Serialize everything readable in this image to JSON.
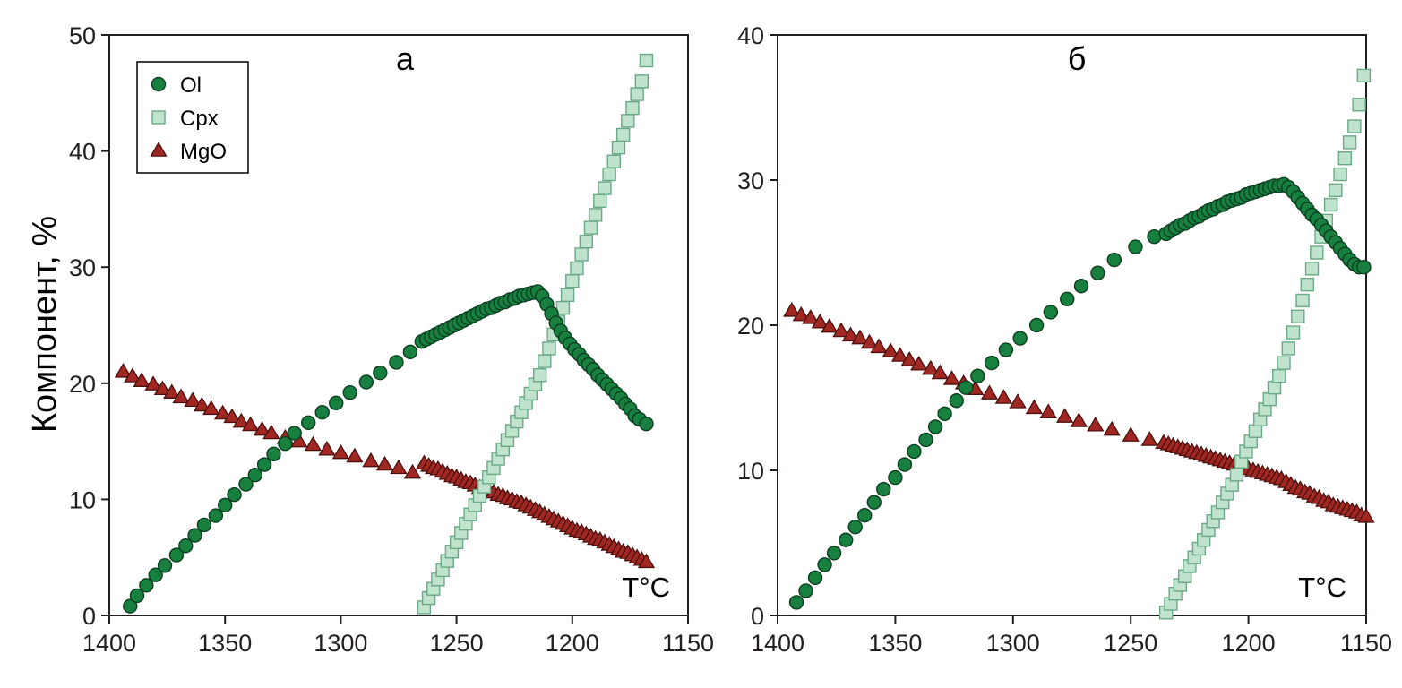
{
  "ylabel": "Компонент, %",
  "legend": [
    {
      "name": "Ol",
      "marker": "circle",
      "fill": "#17803f",
      "stroke": "#0b3d20"
    },
    {
      "name": "Cpx",
      "marker": "square",
      "fill": "#bfe3cc",
      "stroke": "#6aa985"
    },
    {
      "name": "MgO",
      "marker": "triangle",
      "fill": "#a02722",
      "stroke": "#4a0f0c"
    }
  ],
  "chart_data": [
    {
      "type": "scatter",
      "panel_label": "а",
      "xunit_label": "T°C",
      "xlim": [
        1400,
        1150
      ],
      "ylim": [
        0,
        50
      ],
      "x_ticks": [
        "1400",
        "1350",
        "1300",
        "1250",
        "1200",
        "1150"
      ],
      "y_ticks": [
        "0",
        "10",
        "20",
        "30",
        "40",
        "50"
      ],
      "legend_position": "top-left",
      "grid": false,
      "series": [
        {
          "name": "Ol",
          "x": [
            1391,
            1388,
            1384,
            1380,
            1376,
            1371,
            1367,
            1363,
            1359,
            1354,
            1350,
            1346,
            1341,
            1337,
            1333,
            1329,
            1324,
            1320,
            1314,
            1308,
            1302,
            1296,
            1289,
            1283,
            1276,
            1270,
            1265,
            1263,
            1261,
            1259,
            1257,
            1255,
            1253,
            1251,
            1249,
            1247,
            1245,
            1243,
            1241,
            1239,
            1237,
            1235,
            1233,
            1231,
            1229,
            1227,
            1225,
            1223,
            1221,
            1219,
            1217,
            1215,
            1213,
            1211,
            1209,
            1207,
            1205,
            1203,
            1201,
            1199,
            1197,
            1195,
            1193,
            1191,
            1189,
            1187,
            1185,
            1183,
            1181,
            1179,
            1177,
            1175,
            1173,
            1171,
            1168
          ],
          "y": [
            0.8,
            1.7,
            2.6,
            3.5,
            4.3,
            5.2,
            6.0,
            6.9,
            7.8,
            8.6,
            9.5,
            10.4,
            11.3,
            12.1,
            13.0,
            13.9,
            14.8,
            15.7,
            16.6,
            17.5,
            18.3,
            19.2,
            20.1,
            20.9,
            21.8,
            22.7,
            23.6,
            23.8,
            24.0,
            24.2,
            24.4,
            24.6,
            24.8,
            25.0,
            25.2,
            25.4,
            25.6,
            25.8,
            26.0,
            26.2,
            26.4,
            26.5,
            26.7,
            26.9,
            27.0,
            27.2,
            27.3,
            27.5,
            27.6,
            27.7,
            27.8,
            27.9,
            27.5,
            26.8,
            26.0,
            25.2,
            24.5,
            23.9,
            23.4,
            22.9,
            22.5,
            22.0,
            21.6,
            21.2,
            20.7,
            20.3,
            19.9,
            19.5,
            19.1,
            18.7,
            18.2,
            17.8,
            17.2,
            16.9,
            16.5
          ]
        },
        {
          "name": "Cpx",
          "x": [
            1264,
            1262,
            1260,
            1258,
            1256,
            1254,
            1252,
            1250,
            1248,
            1246,
            1244,
            1242,
            1240,
            1238,
            1236,
            1234,
            1232,
            1230,
            1228,
            1226,
            1224,
            1222,
            1220,
            1218,
            1216,
            1214,
            1212,
            1210,
            1208,
            1206,
            1204,
            1202,
            1200,
            1198,
            1196,
            1194,
            1192,
            1190,
            1188,
            1186,
            1184,
            1182,
            1180,
            1178,
            1176,
            1174,
            1172,
            1170,
            1168
          ],
          "y": [
            0.7,
            1.5,
            2.3,
            3.1,
            3.9,
            4.7,
            5.5,
            6.3,
            7.1,
            7.9,
            8.7,
            9.5,
            10.3,
            11.1,
            11.9,
            12.7,
            13.5,
            14.3,
            15.1,
            15.9,
            16.7,
            17.5,
            18.3,
            19.1,
            19.9,
            20.7,
            21.9,
            23.0,
            24.2,
            25.3,
            26.5,
            27.6,
            28.8,
            29.9,
            31.1,
            32.2,
            33.4,
            34.5,
            35.7,
            36.8,
            38.0,
            39.1,
            40.3,
            41.4,
            42.6,
            43.7,
            44.9,
            46.0,
            47.8
          ]
        },
        {
          "name": "MgO",
          "x": [
            1394,
            1390,
            1386,
            1381,
            1377,
            1373,
            1369,
            1364,
            1360,
            1356,
            1351,
            1347,
            1343,
            1339,
            1334,
            1330,
            1324,
            1318,
            1312,
            1306,
            1300,
            1294,
            1287,
            1281,
            1275,
            1269,
            1264,
            1262,
            1260,
            1258,
            1256,
            1254,
            1252,
            1250,
            1248,
            1246,
            1244,
            1242,
            1240,
            1238,
            1236,
            1234,
            1232,
            1230,
            1228,
            1226,
            1224,
            1222,
            1220,
            1218,
            1216,
            1214,
            1212,
            1210,
            1208,
            1206,
            1204,
            1202,
            1200,
            1198,
            1196,
            1194,
            1192,
            1190,
            1188,
            1186,
            1184,
            1182,
            1180,
            1178,
            1176,
            1174,
            1172,
            1170,
            1168
          ],
          "y": [
            21.0,
            20.6,
            20.2,
            19.9,
            19.5,
            19.2,
            18.8,
            18.5,
            18.1,
            17.8,
            17.4,
            17.1,
            16.7,
            16.4,
            16.0,
            15.7,
            15.3,
            15.0,
            14.7,
            14.3,
            14.0,
            13.7,
            13.3,
            13.0,
            12.7,
            12.3,
            13.1,
            12.9,
            12.7,
            12.6,
            12.4,
            12.2,
            12.0,
            11.9,
            11.7,
            11.5,
            11.4,
            11.2,
            11.0,
            10.9,
            10.7,
            10.6,
            10.4,
            10.3,
            10.1,
            10.0,
            9.8,
            9.7,
            9.5,
            9.3,
            9.1,
            8.9,
            8.7,
            8.5,
            8.3,
            8.1,
            7.9,
            7.7,
            7.5,
            7.3,
            7.2,
            7.0,
            6.8,
            6.6,
            6.5,
            6.3,
            6.1,
            5.9,
            5.7,
            5.5,
            5.4,
            5.2,
            5.0,
            4.8,
            4.6
          ]
        }
      ]
    },
    {
      "type": "scatter",
      "panel_label": "б",
      "xunit_label": "T°C",
      "xlim": [
        1400,
        1150
      ],
      "ylim": [
        0,
        40
      ],
      "x_ticks": [
        "1400",
        "1350",
        "1300",
        "1250",
        "1200",
        "1150"
      ],
      "y_ticks": [
        "0",
        "10",
        "20",
        "30",
        "40"
      ],
      "grid": false,
      "series": [
        {
          "name": "Ol",
          "x": [
            1392,
            1388,
            1384,
            1380,
            1376,
            1371,
            1367,
            1363,
            1359,
            1355,
            1350,
            1346,
            1342,
            1337,
            1333,
            1329,
            1324,
            1320,
            1315,
            1309,
            1303,
            1297,
            1290,
            1284,
            1277,
            1271,
            1264,
            1257,
            1248,
            1240,
            1235,
            1233,
            1231,
            1229,
            1227,
            1225,
            1223,
            1221,
            1219,
            1217,
            1215,
            1213,
            1211,
            1209,
            1207,
            1205,
            1203,
            1201,
            1199,
            1197,
            1195,
            1193,
            1191,
            1189,
            1187,
            1185,
            1183,
            1181,
            1179,
            1177,
            1175,
            1173,
            1171,
            1169,
            1167,
            1165,
            1163,
            1161,
            1159,
            1157,
            1155,
            1153,
            1151
          ],
          "y": [
            0.9,
            1.7,
            2.6,
            3.5,
            4.3,
            5.2,
            6.1,
            6.9,
            7.8,
            8.7,
            9.5,
            10.4,
            11.3,
            12.1,
            13.0,
            13.9,
            14.8,
            15.7,
            16.5,
            17.4,
            18.3,
            19.1,
            20.0,
            20.9,
            21.8,
            22.7,
            23.6,
            24.5,
            25.4,
            26.1,
            26.3,
            26.5,
            26.7,
            26.9,
            27.0,
            27.2,
            27.4,
            27.5,
            27.7,
            27.9,
            28.0,
            28.2,
            28.3,
            28.5,
            28.6,
            28.7,
            28.8,
            29.0,
            29.1,
            29.2,
            29.3,
            29.4,
            29.5,
            29.6,
            29.6,
            29.7,
            29.5,
            29.2,
            28.8,
            28.4,
            28.0,
            27.6,
            27.3,
            26.9,
            26.5,
            26.1,
            25.7,
            25.3,
            24.9,
            24.5,
            24.2,
            24.0,
            24.0
          ]
        },
        {
          "name": "Cpx",
          "x": [
            1235,
            1233,
            1231,
            1229,
            1227,
            1225,
            1223,
            1221,
            1219,
            1217,
            1215,
            1213,
            1211,
            1209,
            1207,
            1205,
            1203,
            1201,
            1199,
            1197,
            1195,
            1193,
            1191,
            1189,
            1187,
            1185,
            1183,
            1181,
            1179,
            1177,
            1175,
            1173,
            1171,
            1169,
            1167,
            1165,
            1163,
            1161,
            1159,
            1157,
            1155,
            1153,
            1151
          ],
          "y": [
            0.2,
            0.8,
            1.5,
            2.1,
            2.7,
            3.4,
            4.0,
            4.6,
            5.2,
            5.9,
            6.5,
            7.1,
            7.8,
            8.4,
            9.0,
            9.7,
            10.6,
            11.3,
            12.0,
            12.7,
            13.5,
            14.2,
            14.9,
            15.7,
            16.5,
            17.4,
            18.4,
            19.5,
            20.6,
            21.7,
            22.8,
            23.9,
            25.0,
            26.1,
            27.2,
            28.3,
            29.3,
            30.4,
            31.5,
            32.6,
            33.7,
            35.2,
            37.2
          ]
        },
        {
          "name": "MgO",
          "x": [
            1394,
            1390,
            1386,
            1382,
            1378,
            1373,
            1369,
            1365,
            1361,
            1357,
            1352,
            1348,
            1344,
            1340,
            1335,
            1331,
            1326,
            1321,
            1316,
            1310,
            1304,
            1298,
            1291,
            1285,
            1278,
            1272,
            1265,
            1258,
            1250,
            1242,
            1236,
            1234,
            1232,
            1230,
            1228,
            1226,
            1224,
            1222,
            1220,
            1218,
            1216,
            1214,
            1212,
            1210,
            1208,
            1206,
            1204,
            1202,
            1200,
            1198,
            1196,
            1194,
            1192,
            1190,
            1188,
            1186,
            1184,
            1182,
            1180,
            1178,
            1176,
            1174,
            1172,
            1170,
            1168,
            1166,
            1164,
            1162,
            1160,
            1158,
            1156,
            1154,
            1152,
            1150
          ],
          "y": [
            21.0,
            20.7,
            20.5,
            20.2,
            19.9,
            19.6,
            19.3,
            19.1,
            18.8,
            18.5,
            18.2,
            17.9,
            17.6,
            17.3,
            17.0,
            16.7,
            16.3,
            16.0,
            15.6,
            15.3,
            15.0,
            14.7,
            14.3,
            14.0,
            13.7,
            13.4,
            13.1,
            12.8,
            12.4,
            12.1,
            11.9,
            11.8,
            11.7,
            11.6,
            11.5,
            11.4,
            11.3,
            11.2,
            11.1,
            11.0,
            10.9,
            10.8,
            10.7,
            10.6,
            10.5,
            10.4,
            10.3,
            10.2,
            10.1,
            10.0,
            9.9,
            9.8,
            9.7,
            9.6,
            9.5,
            9.4,
            9.2,
            9.0,
            8.8,
            8.7,
            8.5,
            8.4,
            8.2,
            8.1,
            7.9,
            7.8,
            7.6,
            7.5,
            7.4,
            7.3,
            7.2,
            7.1,
            6.9,
            6.8
          ]
        }
      ]
    }
  ]
}
